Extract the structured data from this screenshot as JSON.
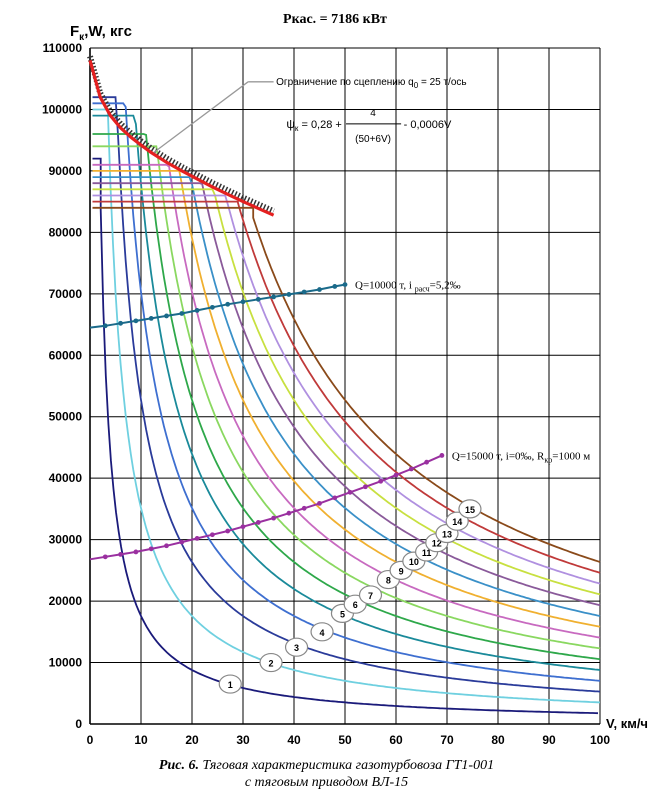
{
  "chart_data": {
    "type": "line",
    "title": "Ркас. = 7186 кВт",
    "ylabel": "F",
    "ylabel_sub": "к",
    "ylabel_rest": ",W, кгс",
    "xlabel": "V, км/ч",
    "xlim": [
      0,
      100
    ],
    "ylim": [
      0,
      110000
    ],
    "x_ticks": [
      0,
      10,
      20,
      30,
      40,
      50,
      60,
      70,
      80,
      90,
      100
    ],
    "y_ticks": [
      0,
      10000,
      20000,
      30000,
      40000,
      50000,
      60000,
      70000,
      80000,
      90000,
      100000,
      110000
    ],
    "grid": true,
    "traction_series": [
      {
        "name": "1",
        "color": "#1a1a7a",
        "power": 0.4786,
        "vmax_f": 2.1,
        "f_top": 92000
      },
      {
        "name": "2",
        "color": "#6fd0e0",
        "power": 0.9571,
        "vmax_f": 2.5,
        "f_top": 100000
      },
      {
        "name": "3",
        "color": "#2a3b9a",
        "power": 1.4357,
        "vmax_f": 4.0,
        "f_top": 102000
      },
      {
        "name": "4",
        "color": "#3e6fd0",
        "power": 1.9143,
        "vmax_f": 5.5,
        "f_top": 101000
      },
      {
        "name": "5",
        "color": "#1a8a9a",
        "power": 2.3929,
        "vmax_f": 7.0,
        "f_top": 99000
      },
      {
        "name": "6",
        "color": "#2ea84a",
        "power": 2.8714,
        "vmax_f": 9.0,
        "f_top": 96000
      },
      {
        "name": "7",
        "color": "#8ad860",
        "power": 3.35,
        "vmax_f": 11.0,
        "f_top": 94000
      },
      {
        "name": "8",
        "color": "#c86ac0",
        "power": 3.8286,
        "vmax_f": 14.0,
        "f_top": 91000
      },
      {
        "name": "9",
        "color": "#f0b030",
        "power": 4.3071,
        "vmax_f": 16.0,
        "f_top": 90000
      },
      {
        "name": "10",
        "color": "#3a90c8",
        "power": 4.7857,
        "vmax_f": 18.0,
        "f_top": 89000
      },
      {
        "name": "11",
        "color": "#8a5a9a",
        "power": 5.2643,
        "vmax_f": 20.0,
        "f_top": 88000
      },
      {
        "name": "12",
        "color": "#c8e040",
        "power": 5.7429,
        "vmax_f": 23.0,
        "f_top": 87000
      },
      {
        "name": "13",
        "color": "#b090e0",
        "power": 6.2214,
        "vmax_f": 26.0,
        "f_top": 86000
      },
      {
        "name": "14",
        "color": "#c03a3a",
        "power": 6.7,
        "vmax_f": 29.0,
        "f_top": 85000
      },
      {
        "name": "15",
        "color": "#8a4a1a",
        "power": 7.1786,
        "vmax_f": 32.0,
        "f_top": 84000
      }
    ],
    "curve_labels": [
      {
        "text": "1",
        "x": 27.5,
        "y": 6500
      },
      {
        "text": "2",
        "x": 35.5,
        "y": 10000
      },
      {
        "text": "3",
        "x": 40.5,
        "y": 12500
      },
      {
        "text": "4",
        "x": 45.5,
        "y": 15000
      },
      {
        "text": "5",
        "x": 49.5,
        "y": 18000
      },
      {
        "text": "6",
        "x": 52.0,
        "y": 19500
      },
      {
        "text": "7",
        "x": 55.0,
        "y": 21000
      },
      {
        "text": "8",
        "x": 58.5,
        "y": 23500
      },
      {
        "text": "9",
        "x": 61.0,
        "y": 25000
      },
      {
        "text": "10",
        "x": 63.5,
        "y": 26500
      },
      {
        "text": "11",
        "x": 66.0,
        "y": 28000
      },
      {
        "text": "12",
        "x": 68.0,
        "y": 29500
      },
      {
        "text": "13",
        "x": 70.0,
        "y": 31000
      },
      {
        "text": "14",
        "x": 72.0,
        "y": 33000
      },
      {
        "text": "15",
        "x": 74.5,
        "y": 35000
      }
    ],
    "adhesion_limit": {
      "label_main": "Ограничение по сцеплению  q",
      "label_sub": "0",
      "label_rest": " = 25 т/ось",
      "formula_psi": "ψ",
      "formula_psi_sub": "к",
      "formula_mid": " = 0,28 + ",
      "formula_num": "4",
      "formula_den": "(50+6V)",
      "formula_tail": " - 0,0006V",
      "color": "#e52020",
      "x": [
        0,
        2,
        4,
        6,
        8,
        10,
        12,
        15,
        18,
        21,
        24,
        27,
        30,
        33,
        36
      ],
      "y": [
        108000,
        102000,
        99000,
        97000,
        95500,
        94200,
        93000,
        91400,
        90000,
        88700,
        87400,
        86200,
        85000,
        83900,
        82800
      ]
    },
    "resistance_lines": [
      {
        "label_main": "Q=10000 т, i ",
        "label_sub": "расч",
        "label_rest": "=5,2‰",
        "color": "#1a6a8a",
        "x": [
          0,
          3,
          6,
          9,
          12,
          15,
          18,
          21,
          24,
          27,
          30,
          33,
          36,
          39,
          42,
          45,
          48,
          50
        ],
        "y": [
          64500,
          64800,
          65200,
          65600,
          66000,
          66400,
          66800,
          67300,
          67800,
          68300,
          68700,
          69100,
          69500,
          69900,
          70300,
          70700,
          71200,
          71500
        ]
      },
      {
        "label_main": "Q=15000 т, i=0‰, R",
        "label_sub": "кр",
        "label_rest": "=1000 м",
        "color": "#9a30a0",
        "x": [
          0,
          3,
          6,
          9,
          12,
          15,
          18,
          21,
          24,
          27,
          30,
          33,
          36,
          39,
          42,
          45,
          48,
          51,
          54,
          57,
          60,
          63,
          66,
          69
        ],
        "y": [
          26800,
          27200,
          27600,
          28000,
          28500,
          29000,
          29600,
          30200,
          30800,
          31400,
          32100,
          32800,
          33500,
          34300,
          35100,
          35900,
          36800,
          37700,
          38600,
          39500,
          40500,
          41500,
          42600,
          43700
        ]
      }
    ]
  },
  "caption": {
    "line1_bold": "Рис. 6.",
    "line1_rest": " Тяговая характеристика газотурбовоза ГТ1-001",
    "line2": "с тяговым приводом ВЛ-15"
  }
}
